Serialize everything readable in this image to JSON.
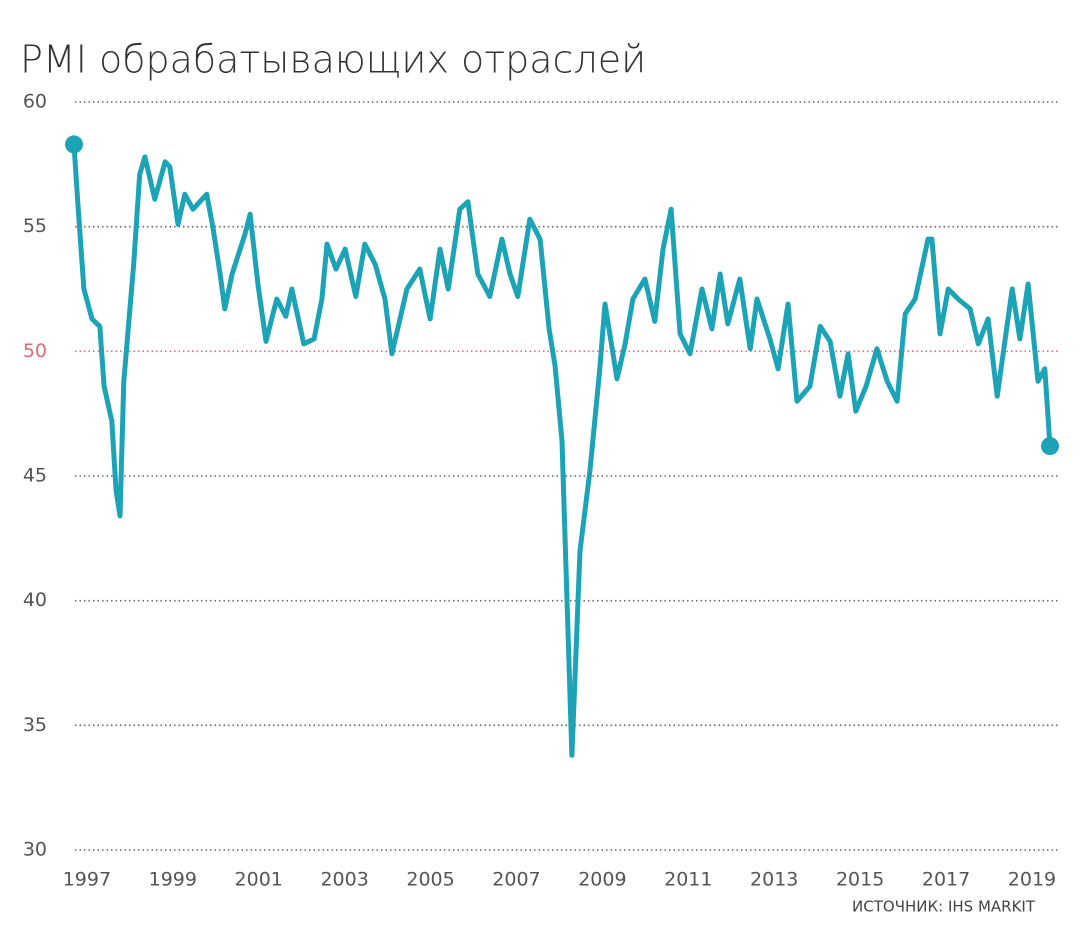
{
  "chart_data": {
    "type": "line",
    "title": "PMI обрабатывающих отраслей",
    "source": "ИСТОЧНИК: IHS MARKIT",
    "color": "#1ca3b6",
    "grid": true,
    "endpoint_markers": true,
    "reference_line": {
      "value": 50,
      "color": "#e0697a"
    },
    "xlim": [
      1996.7,
      2019.42
    ],
    "xticks": [
      1997,
      1999,
      2001,
      2003,
      2005,
      2007,
      2009,
      2011,
      2013,
      2015,
      2017,
      2019
    ],
    "ylim": [
      30,
      60
    ],
    "yticks": [
      30,
      35,
      40,
      45,
      50,
      55,
      60
    ],
    "x": [
      1996.7,
      1996.79,
      1996.93,
      1997.12,
      1997.3,
      1997.4,
      1997.58,
      1997.68,
      1997.77,
      1997.86,
      1998.09,
      1998.23,
      1998.35,
      1998.58,
      1998.82,
      1998.93,
      1999.12,
      1999.28,
      1999.47,
      1999.79,
      1999.93,
      2000.1,
      2000.21,
      2000.38,
      2000.68,
      2000.8,
      2000.98,
      2001.17,
      2001.42,
      2001.63,
      2001.77,
      2002.05,
      2002.29,
      2002.47,
      2002.59,
      2002.8,
      2003.01,
      2003.26,
      2003.47,
      2003.71,
      2003.94,
      2004.1,
      2004.29,
      2004.45,
      2004.75,
      2004.99,
      2005.22,
      2005.41,
      2005.68,
      2005.87,
      2006.1,
      2006.38,
      2006.66,
      2006.85,
      2007.03,
      2007.31,
      2007.55,
      2007.76,
      2007.9,
      2008.06,
      2008.29,
      2008.48,
      2008.71,
      2008.94,
      2009.06,
      2009.34,
      2009.53,
      2009.71,
      2009.99,
      2010.22,
      2010.41,
      2010.6,
      2010.81,
      2011.04,
      2011.32,
      2011.55,
      2011.74,
      2011.92,
      2012.2,
      2012.44,
      2012.6,
      2012.9,
      2013.09,
      2013.32,
      2013.53,
      2013.83,
      2014.07,
      2014.3,
      2014.53,
      2014.72,
      2014.9,
      2015.14,
      2015.39,
      2015.63,
      2015.86,
      2016.05,
      2016.28,
      2016.58,
      2016.67,
      2016.86,
      2017.05,
      2017.28,
      2017.56,
      2017.75,
      2017.98,
      2018.19,
      2018.54,
      2018.72,
      2018.91,
      2019.14,
      2019.3,
      2019.42
    ],
    "values": [
      58.3,
      55.9,
      52.5,
      51.3,
      51.0,
      48.6,
      47.2,
      44.4,
      43.4,
      48.8,
      53.5,
      57.1,
      57.8,
      56.1,
      57.6,
      57.4,
      55.1,
      56.3,
      55.7,
      56.3,
      55.0,
      53.1,
      51.7,
      53.1,
      54.7,
      55.5,
      52.7,
      50.4,
      52.1,
      51.4,
      52.5,
      50.3,
      50.5,
      52.1,
      54.3,
      53.3,
      54.1,
      52.2,
      54.3,
      53.5,
      52.1,
      49.9,
      51.3,
      52.5,
      53.3,
      51.3,
      54.1,
      52.5,
      55.7,
      56.0,
      53.1,
      52.2,
      54.5,
      53.1,
      52.2,
      55.3,
      54.5,
      50.9,
      49.4,
      46.4,
      33.8,
      42.0,
      45.2,
      49.3,
      51.9,
      48.9,
      50.3,
      52.1,
      52.9,
      51.2,
      54.1,
      55.7,
      50.7,
      49.9,
      52.5,
      50.9,
      53.1,
      51.1,
      52.9,
      50.1,
      52.1,
      50.5,
      49.3,
      51.9,
      48.0,
      48.6,
      51.0,
      50.4,
      48.2,
      49.9,
      47.6,
      48.6,
      50.1,
      48.8,
      48.0,
      51.5,
      52.1,
      54.5,
      54.5,
      50.7,
      52.5,
      52.1,
      51.7,
      50.3,
      51.3,
      48.2,
      52.5,
      50.5,
      52.7,
      48.8,
      49.3,
      46.2
    ]
  }
}
